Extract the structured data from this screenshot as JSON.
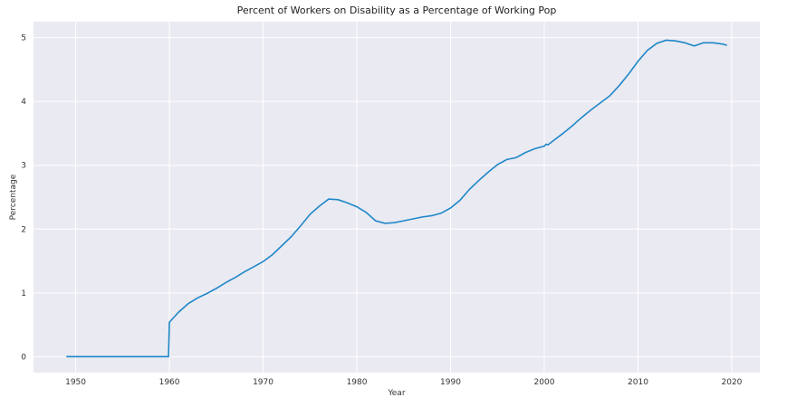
{
  "chart_data": {
    "type": "line",
    "title": "Percent of Workers on Disability as a Percentage of Working Pop",
    "xlabel": "Year",
    "ylabel": "Percentage",
    "xlim": [
      1945.5,
      2023
    ],
    "ylim": [
      -0.25,
      5.25
    ],
    "xticks": [
      1950,
      1960,
      1970,
      1980,
      1990,
      2000,
      2010,
      2020
    ],
    "yticks": [
      0,
      1,
      2,
      3,
      4,
      5
    ],
    "grid": true,
    "colors": {
      "background": "#eaeaf2",
      "grid": "#ffffff",
      "line": "#1f87c8"
    },
    "series": [
      {
        "x": [
          1949,
          1950,
          1951,
          1952,
          1953,
          1954,
          1955,
          1956,
          1957,
          1958,
          1959,
          1959.9,
          1960,
          1961,
          1962,
          1963,
          1964,
          1965,
          1966,
          1967,
          1968,
          1969,
          1970,
          1971,
          1972,
          1973,
          1974,
          1975,
          1976,
          1977,
          1978,
          1979,
          1980,
          1981,
          1982,
          1983,
          1984,
          1985,
          1986,
          1987,
          1988,
          1989,
          1990,
          1991,
          1992,
          1993,
          1994,
          1995,
          1996,
          1997,
          1998,
          1999,
          2000,
          2000.2,
          2000.4,
          2001,
          2002,
          2003,
          2004,
          2005,
          2006,
          2007,
          2008,
          2009,
          2010,
          2011,
          2012,
          2013,
          2014,
          2015,
          2016,
          2017,
          2018,
          2019,
          2019.5
        ],
        "y": [
          0,
          0,
          0,
          0,
          0,
          0,
          0,
          0,
          0,
          0,
          0,
          0,
          0.54,
          0.7,
          0.83,
          0.92,
          0.99,
          1.07,
          1.16,
          1.24,
          1.33,
          1.41,
          1.49,
          1.6,
          1.74,
          1.88,
          2.05,
          2.23,
          2.36,
          2.47,
          2.46,
          2.41,
          2.35,
          2.26,
          2.13,
          2.09,
          2.1,
          2.13,
          2.16,
          2.19,
          2.21,
          2.25,
          2.33,
          2.45,
          2.62,
          2.76,
          2.89,
          3.01,
          3.09,
          3.12,
          3.2,
          3.26,
          3.3,
          3.33,
          3.32,
          3.39,
          3.5,
          3.62,
          3.75,
          3.87,
          3.98,
          4.09,
          4.25,
          4.43,
          4.63,
          4.8,
          4.91,
          4.96,
          4.95,
          4.92,
          4.87,
          4.92,
          4.92,
          4.9,
          4.88
        ]
      }
    ]
  }
}
